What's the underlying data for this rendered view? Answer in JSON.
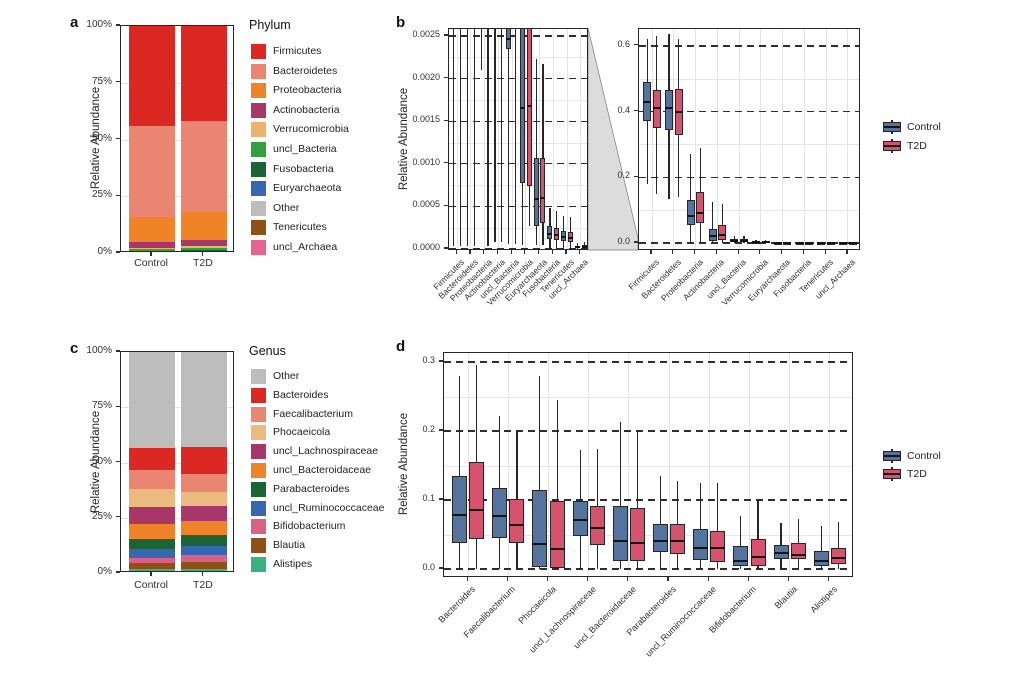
{
  "figure": {
    "panels": [
      "a",
      "b",
      "c",
      "d"
    ],
    "background": "#ffffff"
  },
  "colors": {
    "control": "#54749E",
    "t2d": "#D6536E",
    "box_stroke": "#262626",
    "grid_major": "#2e2e2e",
    "grid_minor": "#e7e7e7",
    "other_gray": "#BDBDBD"
  },
  "chart_data": [
    {
      "id": "a",
      "panel_label": "a",
      "type": "bar",
      "subtype": "stacked_percent",
      "ylabel": "Relative Abundance",
      "legend_title": "Phylum",
      "categories": [
        "Control",
        "T2D"
      ],
      "y_ticks": [
        {
          "v": 0,
          "label": "0%"
        },
        {
          "v": 25,
          "label": "25%"
        },
        {
          "v": 50,
          "label": "50%"
        },
        {
          "v": 75,
          "label": "75%"
        },
        {
          "v": 100,
          "label": "100%"
        }
      ],
      "stack_note": "values are percent, listed in legend order; bars stack bottom-to-top in reverse legend order",
      "items": [
        {
          "label": "Firmicutes",
          "color": "#DB2823"
        },
        {
          "label": "Bacteroidetes",
          "color": "#E98570"
        },
        {
          "label": "Proteobacteria",
          "color": "#F08228"
        },
        {
          "label": "Actinobacteria",
          "color": "#A93668"
        },
        {
          "label": "Verrucomicrobia",
          "color": "#EDB36E"
        },
        {
          "label": "uncl_Bacteria",
          "color": "#33A03C"
        },
        {
          "label": "Fusobacteria",
          "color": "#1B6434"
        },
        {
          "label": "Euryarchaeota",
          "color": "#3767B2"
        },
        {
          "label": "Other",
          "color": "#BDBDBD"
        },
        {
          "label": "Tenericutes",
          "color": "#8D5118"
        },
        {
          "label": "uncl_Archaea",
          "color": "#E8638E"
        }
      ],
      "values": {
        "Control": [
          44,
          40,
          11,
          2.7,
          0.6,
          0.7,
          0.5,
          0.15,
          0.15,
          0.1,
          0.1
        ],
        "T2D": [
          42,
          40,
          12.2,
          2.8,
          0.9,
          0.6,
          0.5,
          0.2,
          0.3,
          0.25,
          0.25
        ]
      }
    },
    {
      "id": "b_zoom",
      "panel_label": "b",
      "type": "box",
      "ylabel": "Relative Abundance",
      "ylim": [
        0,
        0.0026
      ],
      "y_ticks": [
        {
          "v": 0,
          "label": "0.0000"
        },
        {
          "v": 0.0005,
          "label": "0.0005"
        },
        {
          "v": 0.001,
          "label": "0.0010"
        },
        {
          "v": 0.0015,
          "label": "0.0015"
        },
        {
          "v": 0.002,
          "label": "0.0020"
        },
        {
          "v": 0.0025,
          "label": "0.0025"
        }
      ],
      "note": "zoomed-in view of low-abundance range; boxes above 0.0026 are clipped",
      "categories": [
        "Firmicutes",
        "Bacteroidetes",
        "Proteobacteria",
        "Actinobacteria",
        "uncl_Bacteria",
        "Verrucomicrobia",
        "Euryarchaeota",
        "Fusobacteria",
        "Tenericutes",
        "uncl_Archaea"
      ],
      "stats_format": [
        "whisker_low",
        "q1",
        "median",
        "q3",
        "whisker_high"
      ],
      "series": [
        {
          "name": "Control",
          "color": "#54749E",
          "stats": [
            [
              3e-05,
              0.004,
              0.0042,
              0.0045,
              0.005
            ],
            [
              3e-05,
              0.004,
              0.0042,
              0.0045,
              0.005
            ],
            [
              0.0021,
              0.004,
              0.0042,
              0.0045,
              0.005
            ],
            [
              8e-05,
              0.004,
              0.0042,
              0.0045,
              0.005
            ],
            [
              6e-05,
              0.00235,
              0.00247,
              0.0028,
              0.0032
            ],
            [
              5e-05,
              0.00077,
              0.00165,
              0.0028,
              0.0032
            ],
            [
              5e-05,
              0.00027,
              0.00059,
              0.00107,
              0.00223
            ],
            [
              0,
              0.00012,
              0.00018,
              0.00027,
              0.00048
            ],
            [
              0,
              9e-05,
              0.00014,
              0.00021,
              0.00039
            ],
            [
              0,
              1e-05,
              2e-05,
              4e-05,
              7e-05
            ]
          ]
        },
        {
          "name": "T2D",
          "color": "#D6536E",
          "stats": [
            [
              3e-05,
              0.004,
              0.0042,
              0.0045,
              0.005
            ],
            [
              3e-05,
              0.004,
              0.0042,
              0.0045,
              0.005
            ],
            [
              3e-05,
              0.004,
              0.0042,
              0.0045,
              0.005
            ],
            [
              8e-05,
              0.004,
              0.0042,
              0.0045,
              0.005
            ],
            [
              6e-05,
              0.004,
              0.0042,
              0.0045,
              0.005
            ],
            [
              0.00027,
              0.00074,
              0.00168,
              0.0028,
              0.0032
            ],
            [
              5e-05,
              0.00031,
              0.0006,
              0.00107,
              0.00217
            ],
            [
              0,
              0.0001,
              0.00016,
              0.00025,
              0.00045
            ],
            [
              0,
              8e-05,
              0.00013,
              0.0002,
              0.00037
            ],
            [
              0,
              1e-05,
              2e-05,
              5e-05,
              8e-05
            ]
          ]
        }
      ]
    },
    {
      "id": "b_full",
      "panel_label": "b",
      "type": "box",
      "ylabel": "Relative Abundance",
      "ylim": [
        0,
        0.65
      ],
      "y_ticks": [
        {
          "v": 0,
          "label": "0.0"
        },
        {
          "v": 0.2,
          "label": "0.2"
        },
        {
          "v": 0.4,
          "label": "0.4"
        },
        {
          "v": 0.6,
          "label": "0.6"
        }
      ],
      "legend": [
        "Control",
        "T2D"
      ],
      "categories": [
        "Firmicutes",
        "Bacteroidetes",
        "Proteobacteria",
        "Actinobacteria",
        "uncl_Bacteria",
        "Verrucomicrobia",
        "Euryarchaeota",
        "Fusobacteria",
        "Tenericutes",
        "uncl_Archaea"
      ],
      "stats_format": [
        "whisker_low",
        "q1",
        "median",
        "q3",
        "whisker_high"
      ],
      "series": [
        {
          "name": "Control",
          "color": "#54749E",
          "stats": [
            [
              0.18,
              0.37,
              0.43,
              0.49,
              0.62
            ],
            [
              0.135,
              0.345,
              0.41,
              0.465,
              0.635
            ],
            [
              0.001,
              0.055,
              0.083,
              0.13,
              0.27
            ],
            [
              0,
              0.006,
              0.02,
              0.042,
              0.125
            ],
            [
              0,
              0.003,
              0.007,
              0.013,
              0.022
            ],
            [
              0,
              0.001,
              0.002,
              0.004,
              0.008
            ],
            [
              0,
              0.0003,
              0.0006,
              0.0011,
              0.0022
            ],
            [
              0,
              0.0001,
              0.0002,
              0.0003,
              0.0005
            ],
            [
              0,
              0.0001,
              0.0001,
              0.0002,
              0.0004
            ],
            [
              0,
              0,
              0,
              0,
              0.0001
            ]
          ]
        },
        {
          "name": "T2D",
          "color": "#D6536E",
          "stats": [
            [
              0.15,
              0.35,
              0.41,
              0.465,
              0.63
            ],
            [
              0.14,
              0.33,
              0.4,
              0.47,
              0.62
            ],
            [
              0.001,
              0.06,
              0.09,
              0.155,
              0.29
            ],
            [
              0,
              0.01,
              0.025,
              0.055,
              0.12
            ],
            [
              0,
              0.003,
              0.007,
              0.013,
              0.022
            ],
            [
              0,
              0.001,
              0.002,
              0.005,
              0.009
            ],
            [
              0,
              0.0003,
              0.0006,
              0.0011,
              0.0022
            ],
            [
              0,
              0.0001,
              0.0002,
              0.0003,
              0.0005
            ],
            [
              0,
              0.0001,
              0.0001,
              0.0002,
              0.0004
            ],
            [
              0,
              0,
              0,
              0,
              0.0001
            ]
          ]
        }
      ]
    },
    {
      "id": "c",
      "panel_label": "c",
      "type": "bar",
      "subtype": "stacked_percent",
      "ylabel": "Relative Abundance",
      "legend_title": "Genus",
      "categories": [
        "Control",
        "T2D"
      ],
      "y_ticks": [
        {
          "v": 0,
          "label": "0%"
        },
        {
          "v": 25,
          "label": "25%"
        },
        {
          "v": 50,
          "label": "50%"
        },
        {
          "v": 75,
          "label": "75%"
        },
        {
          "v": 100,
          "label": "100%"
        }
      ],
      "stack_note": "values are percent, listed in legend order; bars stack bottom-to-top in reverse legend order",
      "items": [
        {
          "label": "Other",
          "color": "#BDBDBD"
        },
        {
          "label": "Bacteroides",
          "color": "#DB2823"
        },
        {
          "label": "Faecalibacterium",
          "color": "#E98570"
        },
        {
          "label": "Phocaeicola",
          "color": "#EBBA7E"
        },
        {
          "label": "uncl_Lachnospiraceae",
          "color": "#A93668"
        },
        {
          "label": "uncl_Bacteroidaceae",
          "color": "#F08228"
        },
        {
          "label": "Parabacteroides",
          "color": "#1B6434"
        },
        {
          "label": "uncl_Ruminococcaceae",
          "color": "#3767B2"
        },
        {
          "label": "Bifidobacterium",
          "color": "#DB6087"
        },
        {
          "label": "Blautia",
          "color": "#8D5118"
        },
        {
          "label": "Alistipes",
          "color": "#38B27E"
        }
      ],
      "values": {
        "Control": [
          43.5,
          10,
          8.5,
          8,
          8,
          6.5,
          4.5,
          4,
          2.5,
          2.5,
          2
        ],
        "T2D": [
          43,
          12,
          8.5,
          6,
          7,
          6.5,
          5,
          4,
          3.2,
          2.8,
          2
        ]
      }
    },
    {
      "id": "d",
      "panel_label": "d",
      "type": "box",
      "ylabel": "Relative Abundance",
      "ylim": [
        0,
        0.315
      ],
      "y_ticks": [
        {
          "v": 0,
          "label": "0.0"
        },
        {
          "v": 0.1,
          "label": "0.1"
        },
        {
          "v": 0.2,
          "label": "0.2"
        },
        {
          "v": 0.3,
          "label": "0.3"
        }
      ],
      "legend": [
        "Control",
        "T2D"
      ],
      "categories": [
        "Bacteroides",
        "Faecalibacterium",
        "Phocaeicola",
        "uncl_Lachnospiraceae",
        "uncl_Bacteroidaceae",
        "Parabacteroides",
        "uncl_Ruminococcaceae",
        "Bifidobacterium",
        "Blautia",
        "Alistipes"
      ],
      "stats_format": [
        "whisker_low",
        "q1",
        "median",
        "q3",
        "whisker_high"
      ],
      "series": [
        {
          "name": "Control",
          "color": "#54749E",
          "stats": [
            [
              0,
              0.038,
              0.078,
              0.135,
              0.28
            ],
            [
              0,
              0.045,
              0.077,
              0.118,
              0.222
            ],
            [
              0,
              0.003,
              0.036,
              0.114,
              0.28
            ],
            [
              0,
              0.048,
              0.071,
              0.098,
              0.172
            ],
            [
              0,
              0.012,
              0.04,
              0.092,
              0.213
            ],
            [
              0,
              0.025,
              0.04,
              0.065,
              0.135
            ],
            [
              0,
              0.013,
              0.031,
              0.058,
              0.124
            ],
            [
              0,
              0.004,
              0.012,
              0.033,
              0.077
            ],
            [
              0,
              0.015,
              0.023,
              0.035,
              0.067
            ],
            [
              0,
              0.005,
              0.012,
              0.026,
              0.062
            ]
          ]
        },
        {
          "name": "T2D",
          "color": "#D6536E",
          "stats": [
            [
              0,
              0.044,
              0.085,
              0.155,
              0.295
            ],
            [
              0,
              0.037,
              0.064,
              0.102,
              0.2
            ],
            [
              0,
              0.002,
              0.029,
              0.099,
              0.245
            ],
            [
              0,
              0.035,
              0.06,
              0.091,
              0.174
            ],
            [
              0,
              0.012,
              0.038,
              0.088,
              0.2
            ],
            [
              0,
              0.022,
              0.04,
              0.065,
              0.128
            ],
            [
              0,
              0.01,
              0.03,
              0.055,
              0.124
            ],
            [
              0,
              0.005,
              0.017,
              0.043,
              0.1
            ],
            [
              0,
              0.014,
              0.021,
              0.037,
              0.072
            ],
            [
              0,
              0.007,
              0.016,
              0.031,
              0.068
            ]
          ]
        }
      ]
    }
  ]
}
